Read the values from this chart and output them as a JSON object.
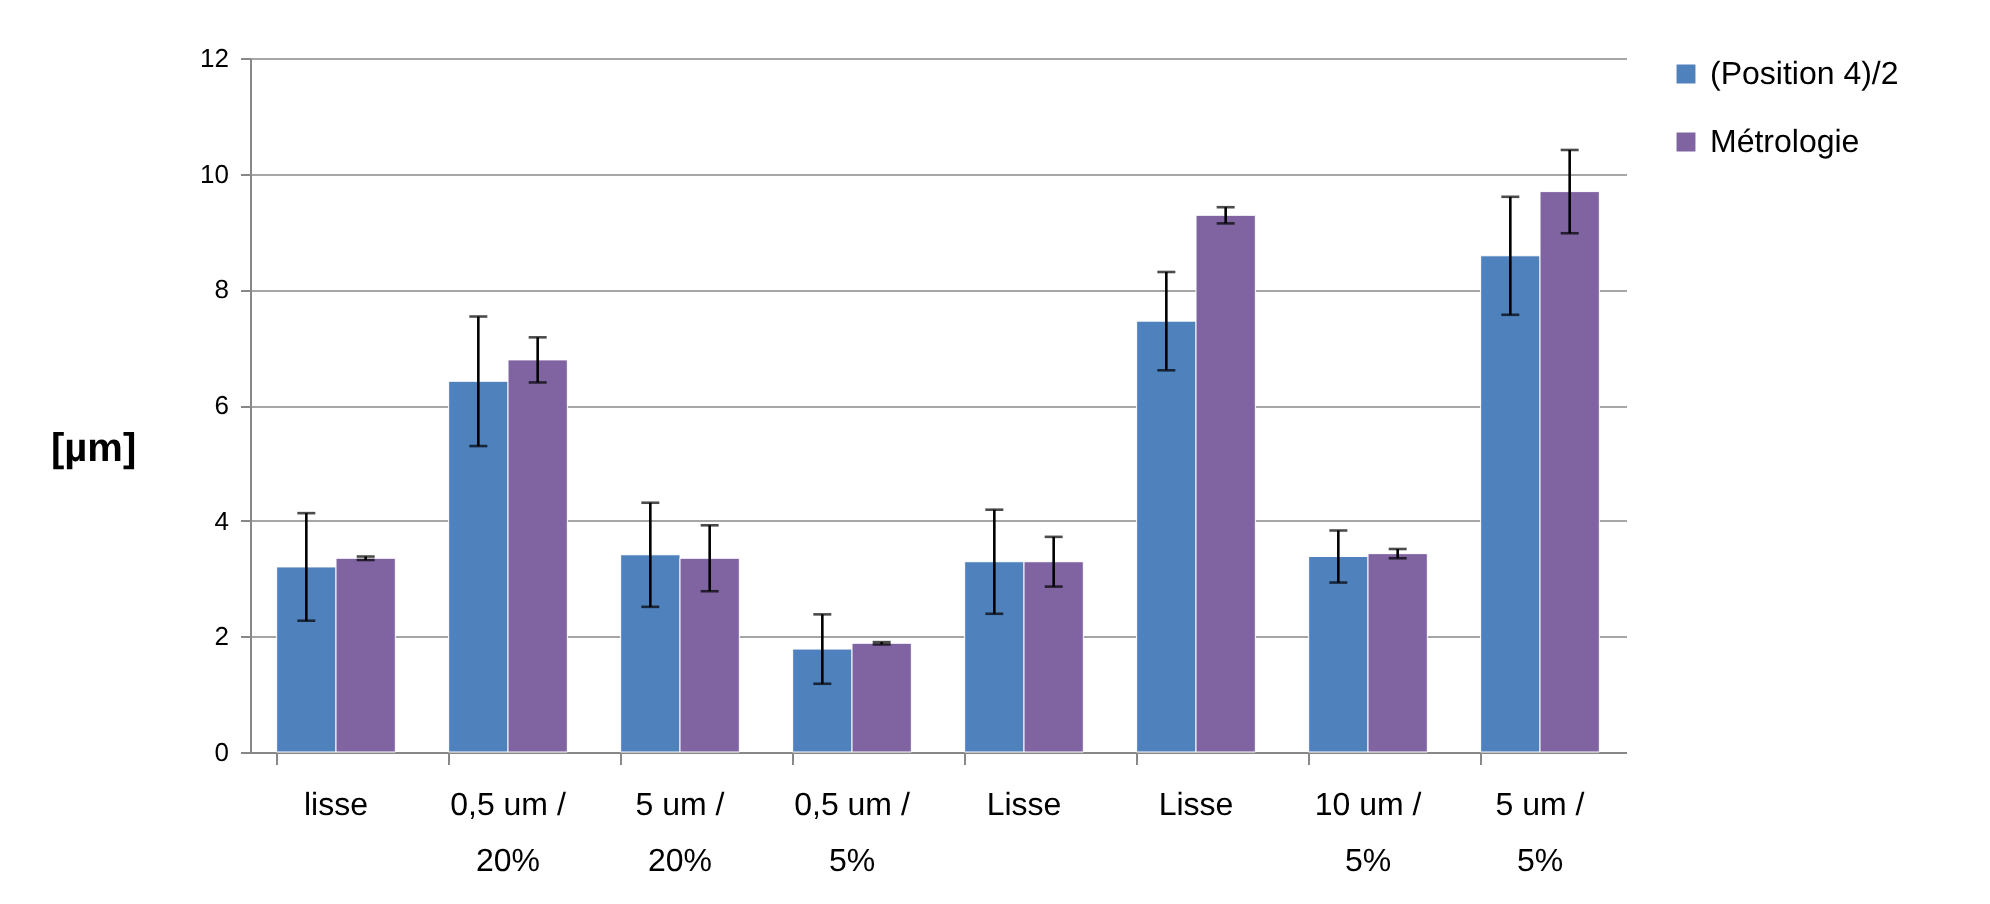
{
  "chart_data": {
    "type": "bar",
    "ylabel": "[µm]",
    "categories": [
      "lisse",
      "0,5 um / 20%",
      "5 um / 20%",
      "0,5 um / 5%",
      "Lisse",
      "Lisse",
      "10 um / 5%",
      "5 um / 5%"
    ],
    "series": [
      {
        "name": "(Position 4)/2",
        "color": "#4f81bd",
        "values": [
          3.2,
          6.41,
          3.41,
          1.78,
          3.29,
          7.45,
          3.38,
          8.58
        ],
        "errors": [
          0.93,
          1.12,
          0.9,
          0.6,
          0.9,
          0.85,
          0.45,
          1.02
        ]
      },
      {
        "name": "Métrologie",
        "color": "#8064a2",
        "values": [
          3.35,
          6.78,
          3.35,
          1.88,
          3.29,
          9.28,
          3.43,
          9.69
        ],
        "errors": [
          0.03,
          0.39,
          0.57,
          0.02,
          0.43,
          0.14,
          0.08,
          0.72
        ]
      }
    ],
    "ylim": [
      0,
      12
    ],
    "yticks": [
      0,
      2,
      4,
      6,
      8,
      10,
      12
    ],
    "grid": "y",
    "legend": "right"
  }
}
